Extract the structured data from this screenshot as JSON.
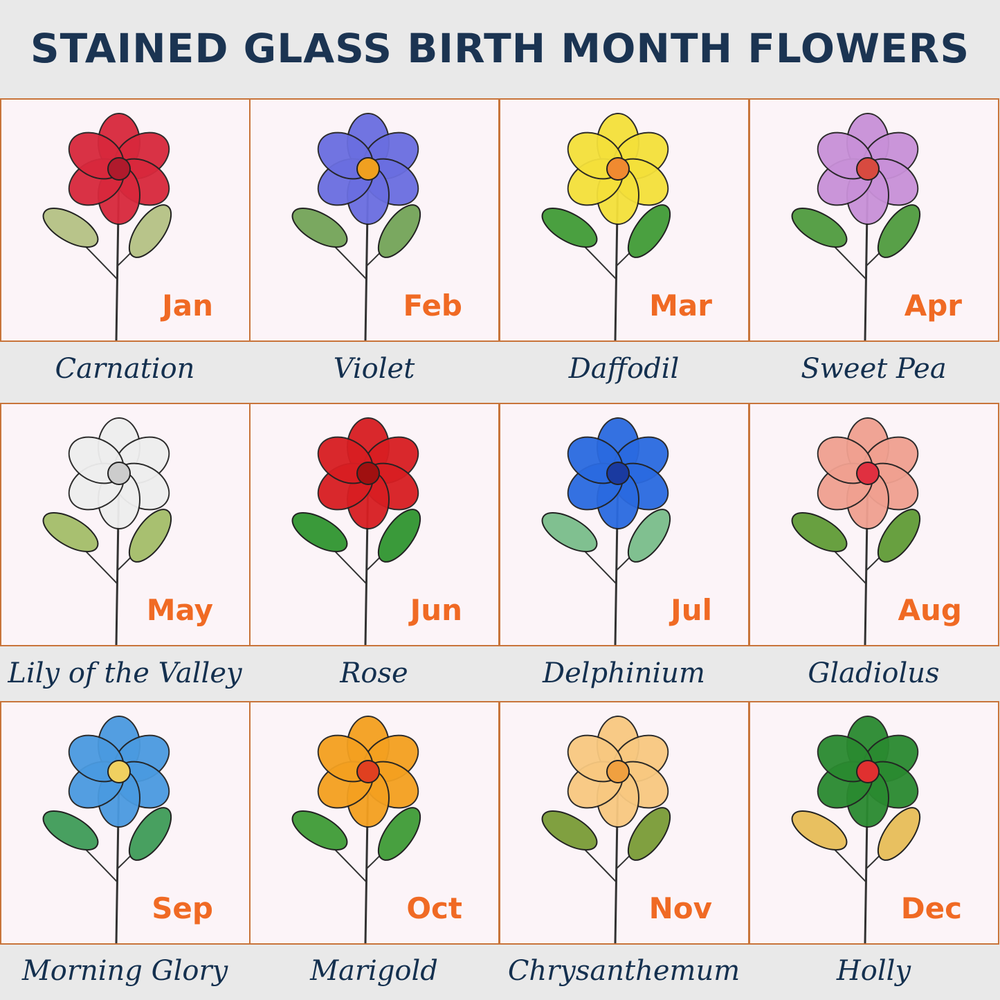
{
  "title": "STAINED GLASS BIRTH MONTH FLOWERS",
  "colors": {
    "border": "#c8743a",
    "month": "#f06a24",
    "name": "#14304f",
    "title": "#1b3452"
  },
  "flowers": [
    {
      "month": "Jan",
      "name": "Carnation",
      "petal": "#d8283c",
      "center": "#b01a2c",
      "leaf": "#b8c48a",
      "icon": "carnation-icon"
    },
    {
      "month": "Feb",
      "name": "Violet",
      "petal": "#6a6ee0",
      "center": "#f0a020",
      "leaf": "#7aa860",
      "icon": "violet-icon"
    },
    {
      "month": "Mar",
      "name": "Daffodil",
      "petal": "#f4e03a",
      "center": "#f08a30",
      "leaf": "#4aa040",
      "icon": "daffodil-icon"
    },
    {
      "month": "Apr",
      "name": "Sweet Pea",
      "petal": "#c890d8",
      "center": "#d84a40",
      "leaf": "#58a048",
      "icon": "sweet-pea-icon"
    },
    {
      "month": "May",
      "name": "Lily of the Valley",
      "petal": "#eeeeee",
      "center": "#cccccc",
      "leaf": "#a8c070",
      "icon": "lily-of-the-valley-icon"
    },
    {
      "month": "Jun",
      "name": "Rose",
      "petal": "#d81e22",
      "center": "#a01010",
      "leaf": "#3a9a3a",
      "icon": "rose-icon"
    },
    {
      "month": "Jul",
      "name": "Delphinium",
      "petal": "#2a6ae0",
      "center": "#1a3aa0",
      "leaf": "#80c090",
      "icon": "delphinium-icon"
    },
    {
      "month": "Aug",
      "name": "Gladiolus",
      "petal": "#f0a090",
      "center": "#e03040",
      "leaf": "#68a040",
      "icon": "gladiolus-icon"
    },
    {
      "month": "Sep",
      "name": "Morning Glory",
      "petal": "#4a9ae0",
      "center": "#f0d060",
      "leaf": "#48a060",
      "icon": "morning-glory-icon"
    },
    {
      "month": "Oct",
      "name": "Marigold",
      "petal": "#f4a020",
      "center": "#e04020",
      "leaf": "#48a040",
      "icon": "marigold-icon"
    },
    {
      "month": "Nov",
      "name": "Chrysanthemum",
      "petal": "#f8c880",
      "center": "#f0a040",
      "leaf": "#80a040",
      "icon": "chrysanthemum-icon"
    },
    {
      "month": "Dec",
      "name": "Holly",
      "petal": "#2a8a30",
      "center": "#e03030",
      "leaf": "#e8c060",
      "icon": "holly-icon"
    }
  ]
}
